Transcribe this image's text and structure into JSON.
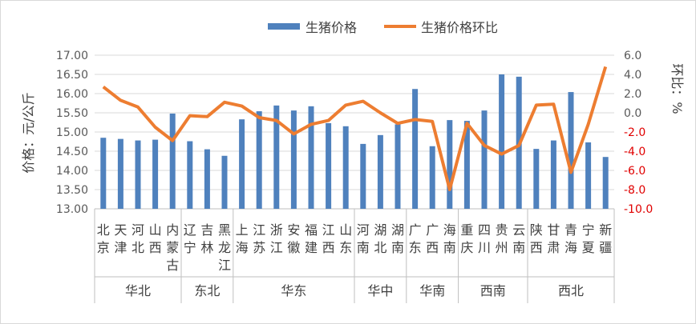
{
  "chart_data": {
    "type": "bar+line",
    "legend": {
      "position": "top",
      "entries": [
        "生猪价格",
        "生猪价格环比"
      ]
    },
    "ylabel": "价格：元/公斤",
    "y2label": "环比：%",
    "ylim": [
      13,
      17
    ],
    "y2lim": [
      -10,
      6
    ],
    "yticks": [
      "13.00",
      "13.50",
      "14.00",
      "14.50",
      "15.00",
      "15.50",
      "16.00",
      "16.50",
      "17.00"
    ],
    "y2ticks": [
      "-10.0",
      "-8.0",
      "-6.0",
      "-4.0",
      "-2.0",
      "0.0",
      "2.0",
      "4.0",
      "6.0"
    ],
    "categories": [
      "北京",
      "天津",
      "河北",
      "山西",
      "内蒙古",
      "辽宁",
      "吉林",
      "黑龙江",
      "上海",
      "江苏",
      "浙江",
      "安徽",
      "福建",
      "江西",
      "山东",
      "河南",
      "湖北",
      "湖南",
      "广东",
      "广西",
      "海南",
      "重庆",
      "四川",
      "贵州",
      "云南",
      "陕西",
      "甘肃",
      "青海",
      "宁夏",
      "新疆"
    ],
    "groups": [
      {
        "name": "华北",
        "count": 5
      },
      {
        "name": "东北",
        "count": 3
      },
      {
        "name": "华东",
        "count": 7
      },
      {
        "name": "华中",
        "count": 3
      },
      {
        "name": "华南",
        "count": 3
      },
      {
        "name": "西南",
        "count": 4
      },
      {
        "name": "西北",
        "count": 5
      }
    ],
    "series": [
      {
        "name": "生猪价格",
        "type": "bar",
        "axis": "left",
        "color": "#4f81bd",
        "values": [
          14.85,
          14.82,
          14.78,
          14.8,
          15.48,
          14.76,
          14.55,
          14.38,
          15.33,
          15.54,
          15.69,
          15.56,
          15.67,
          15.23,
          15.15,
          14.69,
          14.92,
          15.2,
          16.12,
          14.63,
          15.31,
          15.29,
          15.56,
          16.5,
          16.44,
          14.56,
          14.78,
          16.04,
          14.73,
          14.35
        ]
      },
      {
        "name": "生猪价格环比",
        "type": "line",
        "axis": "right",
        "color": "#ed7d31",
        "values": [
          2.7,
          1.3,
          0.6,
          -1.5,
          -2.9,
          -0.3,
          -0.4,
          1.1,
          0.7,
          -0.5,
          -0.8,
          -2.2,
          -1.2,
          -0.8,
          0.8,
          1.2,
          0.0,
          -1.1,
          -0.7,
          -0.9,
          -8.0,
          -1.1,
          -3.4,
          -4.3,
          -3.4,
          0.8,
          0.9,
          -6.2,
          -1.2,
          4.8
        ]
      }
    ]
  }
}
